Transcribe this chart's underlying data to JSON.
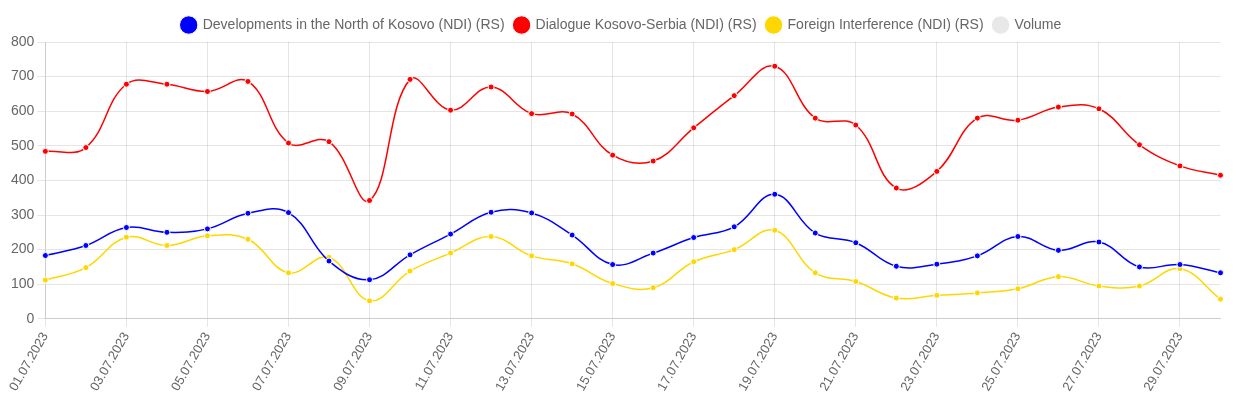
{
  "chart_data": {
    "type": "line",
    "categories": [
      "01.07.2023",
      null,
      "03.07.2023",
      null,
      "05.07.2023",
      null,
      "07.07.2023",
      null,
      "09.07.2023",
      null,
      "11.07.2023",
      null,
      "13.07.2023",
      null,
      "15.07.2023",
      null,
      "17.07.2023",
      null,
      "19.07.2023",
      null,
      "21.07.2023",
      null,
      "23.07.2023",
      null,
      "25.07.2023",
      null,
      "27.07.2023",
      null,
      "29.07.2023",
      null
    ],
    "series": [
      {
        "name": "Developments in the North of Kosovo (NDI) (RS)",
        "color": "#0000ff",
        "values": [
          183,
          212,
          264,
          250,
          260,
          305,
          307,
          167,
          113,
          185,
          245,
          308,
          306,
          242,
          157,
          190,
          235,
          266,
          360,
          248,
          220,
          152,
          158,
          182,
          238,
          198,
          222,
          150,
          157,
          133
        ]
      },
      {
        "name": "Dialogue Kosovo-Serbia (NDI) (RS)",
        "color": "#ff0000",
        "values": [
          484,
          495,
          678,
          678,
          657,
          686,
          508,
          512,
          342,
          692,
          603,
          670,
          593,
          592,
          473,
          456,
          552,
          645,
          730,
          580,
          560,
          378,
          426,
          580,
          574,
          612,
          607,
          503,
          442,
          415
        ]
      },
      {
        "name": "Foreign Interference (NDI) (RS)",
        "color": "#ffd700",
        "values": [
          112,
          148,
          236,
          212,
          240,
          230,
          133,
          178,
          52,
          138,
          190,
          238,
          182,
          159,
          102,
          90,
          165,
          200,
          256,
          133,
          108,
          60,
          68,
          75,
          87,
          122,
          95,
          95,
          145,
          57
        ]
      },
      {
        "name": "Volume",
        "color": "#e8e8e8",
        "values": [
          null,
          null,
          null,
          null,
          null,
          null,
          null,
          null,
          null,
          null,
          null,
          null,
          null,
          null,
          null,
          null,
          null,
          null,
          null,
          null,
          null,
          null,
          null,
          null,
          null,
          null,
          null,
          null,
          null,
          null
        ]
      }
    ],
    "ylim": [
      0,
      800
    ],
    "yticks": [
      0,
      100,
      200,
      300,
      400,
      500,
      600,
      700,
      800
    ],
    "grid": true,
    "legend": "top",
    "marker": "circle",
    "line_style": "solid"
  }
}
